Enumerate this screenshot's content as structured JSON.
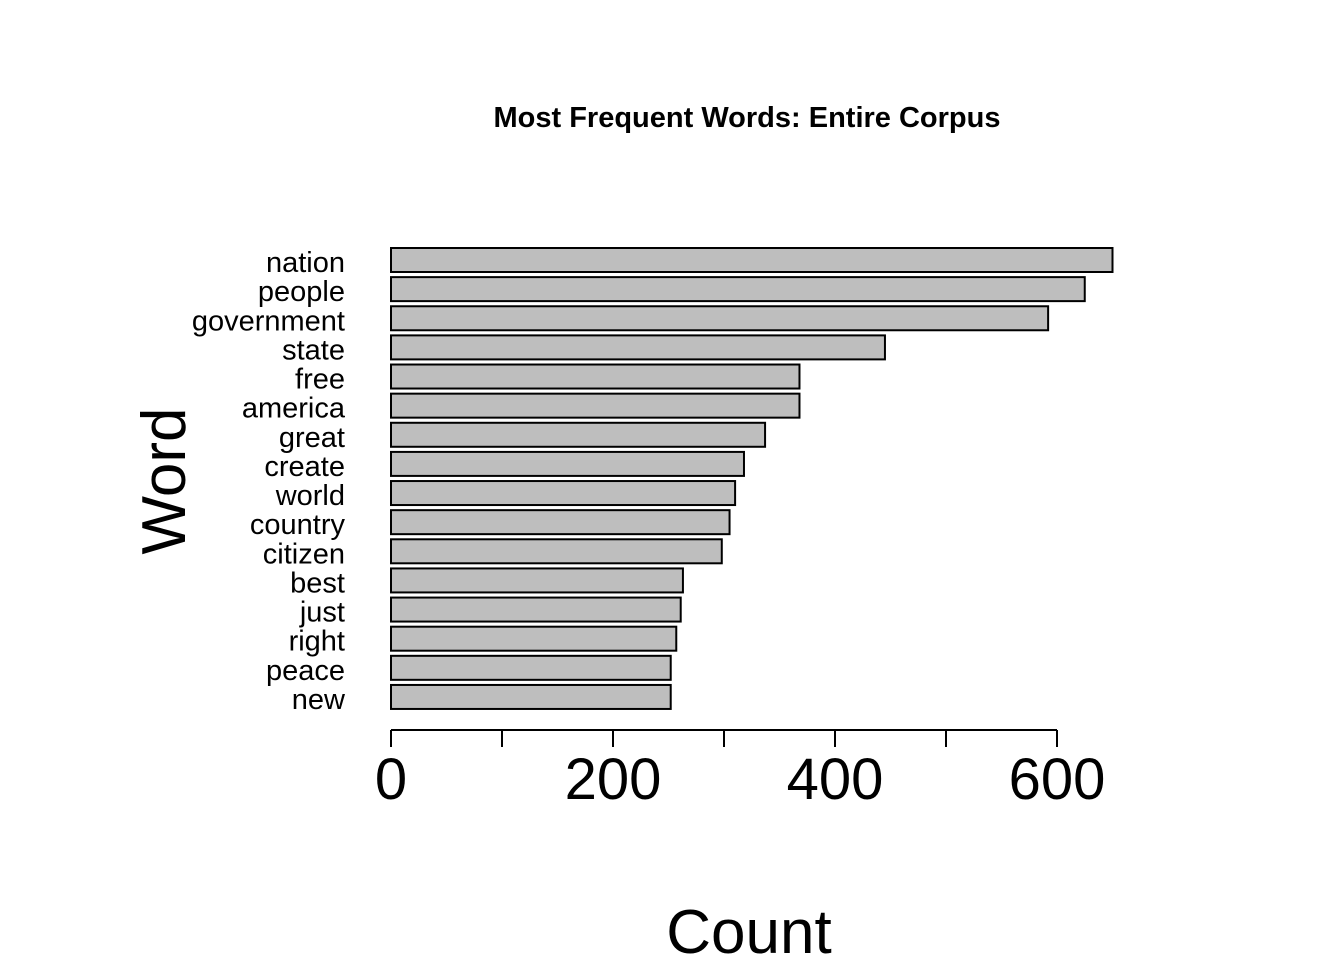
{
  "chart_data": {
    "type": "bar",
    "orientation": "horizontal",
    "title": "Most Frequent Words: Entire Corpus",
    "xlabel": "Count",
    "ylabel": "Word",
    "categories": [
      "nation",
      "people",
      "government",
      "state",
      "free",
      "america",
      "great",
      "create",
      "world",
      "country",
      "citizen",
      "best",
      "just",
      "right",
      "peace",
      "new"
    ],
    "values": [
      650,
      625,
      592,
      445,
      368,
      368,
      337,
      318,
      310,
      305,
      298,
      263,
      261,
      257,
      252,
      252
    ],
    "xlim": [
      0,
      650
    ],
    "x_ticks": [
      0,
      100,
      200,
      300,
      400,
      500,
      600
    ],
    "x_tick_labels": [
      "0",
      "",
      "200",
      "",
      "400",
      "",
      "600"
    ],
    "grid": false,
    "bar_color": "#bebebe",
    "bar_edge_color": "#000000"
  }
}
